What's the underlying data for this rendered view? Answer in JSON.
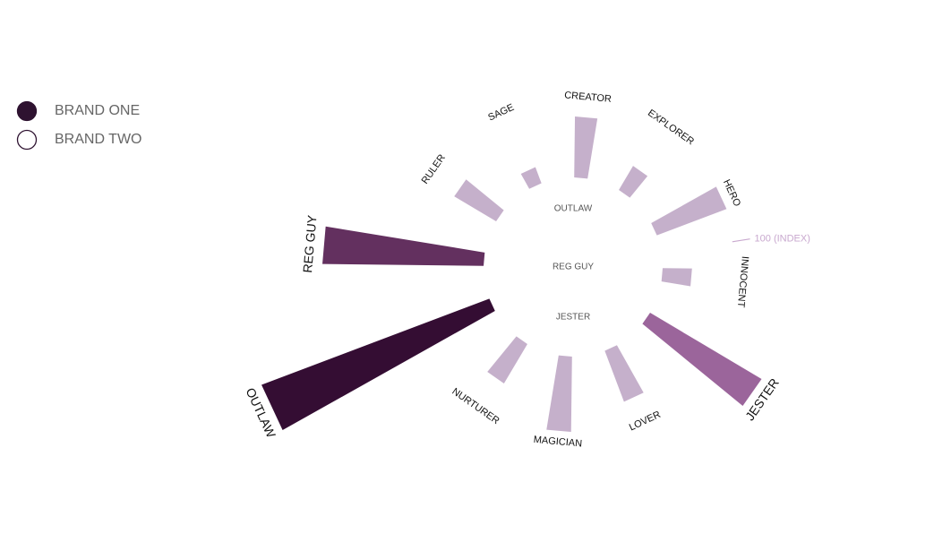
{
  "chart_data": {
    "type": "radial-bar",
    "categories": [
      "CREATOR",
      "EXPLORER",
      "HERO",
      "INNOCENT",
      "JESTER",
      "LOVER",
      "MAGICIAN",
      "NURTURER",
      "OUTLAW",
      "REG GUY",
      "RULER",
      "SAGE"
    ],
    "values": [
      85,
      39,
      104,
      41,
      181,
      76,
      105,
      64,
      340,
      225,
      68,
      24
    ],
    "colors": [
      "#c5b0cb",
      "#c5b0cb",
      "#c5b0cb",
      "#c5b0cb",
      "#9b659b",
      "#c5b0cb",
      "#c5b0cb",
      "#c5b0cb",
      "#340d33",
      "#63305f",
      "#c5b0cb",
      "#c5b0cb"
    ],
    "highlight": [
      "JESTER",
      "OUTLAW",
      "REG GUY"
    ],
    "rlim": [
      0,
      350
    ],
    "reference": {
      "value": 100,
      "label": "100 (INDEX)"
    },
    "center_labels": [
      "OUTLAW",
      "REG GUY",
      "JESTER"
    ],
    "legend": [
      {
        "name": "BRAND ONE",
        "fill": "#2e1230"
      },
      {
        "name": "BRAND TWO",
        "fill": "none"
      }
    ]
  }
}
